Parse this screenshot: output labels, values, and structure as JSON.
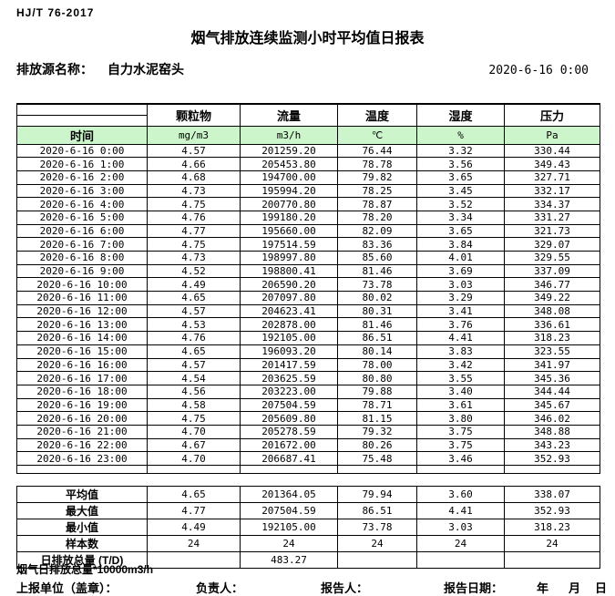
{
  "header": {
    "standard": "HJ/T 76-2017",
    "title": "烟气排放连续监测小时平均值日报表",
    "source_label": "排放源名称：",
    "source_name": "自力水泥窑头",
    "datetime": "2020-6-16 0:00"
  },
  "table": {
    "time_header": "时间",
    "columns": [
      {
        "name": "颗粒物",
        "unit": "mg/m3"
      },
      {
        "name": "流量",
        "unit": "m3/h"
      },
      {
        "name": "温度",
        "unit": "℃"
      },
      {
        "name": "湿度",
        "unit": "%"
      },
      {
        "name": "压力",
        "unit": "Pa"
      }
    ],
    "rows": [
      {
        "time": "2020-6-16 0:00",
        "values": [
          "4.57",
          "201259.20",
          "76.44",
          "3.32",
          "330.44"
        ]
      },
      {
        "time": "2020-6-16 1:00",
        "values": [
          "4.66",
          "205453.80",
          "78.78",
          "3.56",
          "349.43"
        ]
      },
      {
        "time": "2020-6-16 2:00",
        "values": [
          "4.68",
          "194700.00",
          "79.82",
          "3.65",
          "327.71"
        ]
      },
      {
        "time": "2020-6-16 3:00",
        "values": [
          "4.73",
          "195994.20",
          "78.25",
          "3.45",
          "332.17"
        ]
      },
      {
        "time": "2020-6-16 4:00",
        "values": [
          "4.75",
          "200770.80",
          "78.87",
          "3.52",
          "334.37"
        ]
      },
      {
        "time": "2020-6-16 5:00",
        "values": [
          "4.76",
          "199180.20",
          "78.20",
          "3.34",
          "331.27"
        ]
      },
      {
        "time": "2020-6-16 6:00",
        "values": [
          "4.77",
          "195660.00",
          "82.09",
          "3.65",
          "321.73"
        ]
      },
      {
        "time": "2020-6-16 7:00",
        "values": [
          "4.75",
          "197514.59",
          "83.36",
          "3.84",
          "329.07"
        ]
      },
      {
        "time": "2020-6-16 8:00",
        "values": [
          "4.73",
          "198997.80",
          "85.60",
          "4.01",
          "329.55"
        ]
      },
      {
        "time": "2020-6-16 9:00",
        "values": [
          "4.52",
          "198800.41",
          "81.46",
          "3.69",
          "337.09"
        ]
      },
      {
        "time": "2020-6-16 10:00",
        "values": [
          "4.49",
          "206590.20",
          "73.78",
          "3.03",
          "346.77"
        ]
      },
      {
        "time": "2020-6-16 11:00",
        "values": [
          "4.65",
          "207097.80",
          "80.02",
          "3.29",
          "349.22"
        ]
      },
      {
        "time": "2020-6-16 12:00",
        "values": [
          "4.57",
          "204623.41",
          "80.31",
          "3.41",
          "348.08"
        ]
      },
      {
        "time": "2020-6-16 13:00",
        "values": [
          "4.53",
          "202878.00",
          "81.46",
          "3.76",
          "336.61"
        ]
      },
      {
        "time": "2020-6-16 14:00",
        "values": [
          "4.76",
          "192105.00",
          "86.51",
          "4.41",
          "318.23"
        ]
      },
      {
        "time": "2020-6-16 15:00",
        "values": [
          "4.65",
          "196093.20",
          "80.14",
          "3.83",
          "323.55"
        ]
      },
      {
        "time": "2020-6-16 16:00",
        "values": [
          "4.57",
          "201417.59",
          "78.00",
          "3.42",
          "341.97"
        ]
      },
      {
        "time": "2020-6-16 17:00",
        "values": [
          "4.54",
          "203625.59",
          "80.80",
          "3.55",
          "345.36"
        ]
      },
      {
        "time": "2020-6-16 18:00",
        "values": [
          "4.56",
          "203223.00",
          "79.88",
          "3.40",
          "344.44"
        ]
      },
      {
        "time": "2020-6-16 19:00",
        "values": [
          "4.58",
          "207504.59",
          "78.71",
          "3.61",
          "345.67"
        ]
      },
      {
        "time": "2020-6-16 20:00",
        "values": [
          "4.75",
          "205609.80",
          "81.15",
          "3.80",
          "346.02"
        ]
      },
      {
        "time": "2020-6-16 21:00",
        "values": [
          "4.70",
          "205278.59",
          "79.32",
          "3.75",
          "348.88"
        ]
      },
      {
        "time": "2020-6-16 22:00",
        "values": [
          "4.67",
          "201672.00",
          "80.26",
          "3.75",
          "343.23"
        ]
      },
      {
        "time": "2020-6-16 23:00",
        "values": [
          "4.70",
          "206687.41",
          "75.48",
          "3.46",
          "352.93"
        ]
      }
    ],
    "summary": [
      {
        "label": "平均值",
        "values": [
          "4.65",
          "201364.05",
          "79.94",
          "3.60",
          "338.07"
        ]
      },
      {
        "label": "最大值",
        "values": [
          "4.77",
          "207504.59",
          "86.51",
          "4.41",
          "352.93"
        ]
      },
      {
        "label": "最小值",
        "values": [
          "4.49",
          "192105.00",
          "73.78",
          "3.03",
          "318.23"
        ]
      },
      {
        "label": "样本数",
        "values": [
          "24",
          "24",
          "24",
          "24",
          "24"
        ]
      },
      {
        "label": "日排放总量 (T/D)",
        "values": [
          "",
          "483.27",
          "",
          "",
          ""
        ]
      }
    ]
  },
  "footer": {
    "note": "烟气日排放总量*10000m3/h",
    "report_unit_label": "上报单位（盖章）：",
    "responsible_label": "负责人：",
    "reporter_label": "报告人：",
    "report_date_label": "报告日期：",
    "year_label": "年",
    "month_label": "月",
    "day_label": "日"
  },
  "colors": {
    "header_green": "#ccf5cc",
    "border": "#000000"
  }
}
